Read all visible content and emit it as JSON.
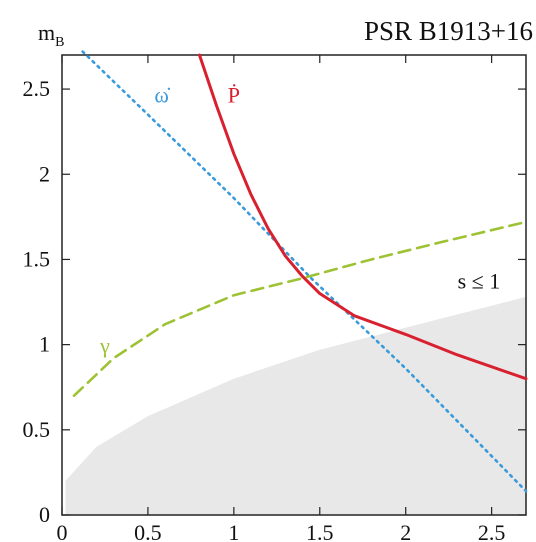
{
  "chart_data": {
    "type": "line",
    "title": "PSR B1913+16",
    "ylabel_main": "m",
    "ylabel_sub": "B",
    "xlim": [
      0,
      2.7
    ],
    "ylim": [
      0,
      2.7
    ],
    "xticks": [
      {
        "value": 0,
        "label": "0"
      },
      {
        "value": 0.5,
        "label": "0.5"
      },
      {
        "value": 1,
        "label": "1"
      },
      {
        "value": 1.5,
        "label": "1.5"
      },
      {
        "value": 2,
        "label": "2"
      },
      {
        "value": 2.5,
        "label": "2.5"
      }
    ],
    "yticks": [
      {
        "value": 0,
        "label": "0"
      },
      {
        "value": 0.5,
        "label": "0.5"
      },
      {
        "value": 1,
        "label": "1"
      },
      {
        "value": 1.5,
        "label": "1.5"
      },
      {
        "value": 2,
        "label": "2"
      },
      {
        "value": 2.5,
        "label": "2.5"
      }
    ],
    "grid": false,
    "region": {
      "label": "s ≤ 1",
      "color": "#e8e8e8",
      "upper_boundary": [
        [
          0.02,
          0.2
        ],
        [
          0.2,
          0.4
        ],
        [
          0.5,
          0.58
        ],
        [
          1.0,
          0.8
        ],
        [
          1.5,
          0.97
        ],
        [
          2.0,
          1.1
        ],
        [
          2.7,
          1.28
        ]
      ]
    },
    "series": [
      {
        "label": "ω̇",
        "style": "dotted",
        "color": "#3a9bdc",
        "x": [
          0.12,
          0.5,
          1.0,
          1.45,
          2.0,
          2.7
        ],
        "y": [
          2.72,
          2.35,
          1.86,
          1.39,
          0.86,
          0.14
        ]
      },
      {
        "label": "Ṗ",
        "style": "solid",
        "color": "#d8202f",
        "x": [
          0.8,
          0.9,
          1.0,
          1.1,
          1.2,
          1.3,
          1.4,
          1.5,
          1.7,
          2.0,
          2.3,
          2.7
        ],
        "y": [
          2.7,
          2.4,
          2.12,
          1.88,
          1.68,
          1.52,
          1.4,
          1.3,
          1.17,
          1.06,
          0.94,
          0.8
        ]
      },
      {
        "label": "γ",
        "style": "dashed",
        "color": "#9dc234",
        "x": [
          0.07,
          0.3,
          0.6,
          1.0,
          1.4,
          1.8,
          2.2,
          2.7
        ],
        "y": [
          0.7,
          0.92,
          1.12,
          1.29,
          1.39,
          1.5,
          1.6,
          1.72
        ]
      }
    ]
  }
}
